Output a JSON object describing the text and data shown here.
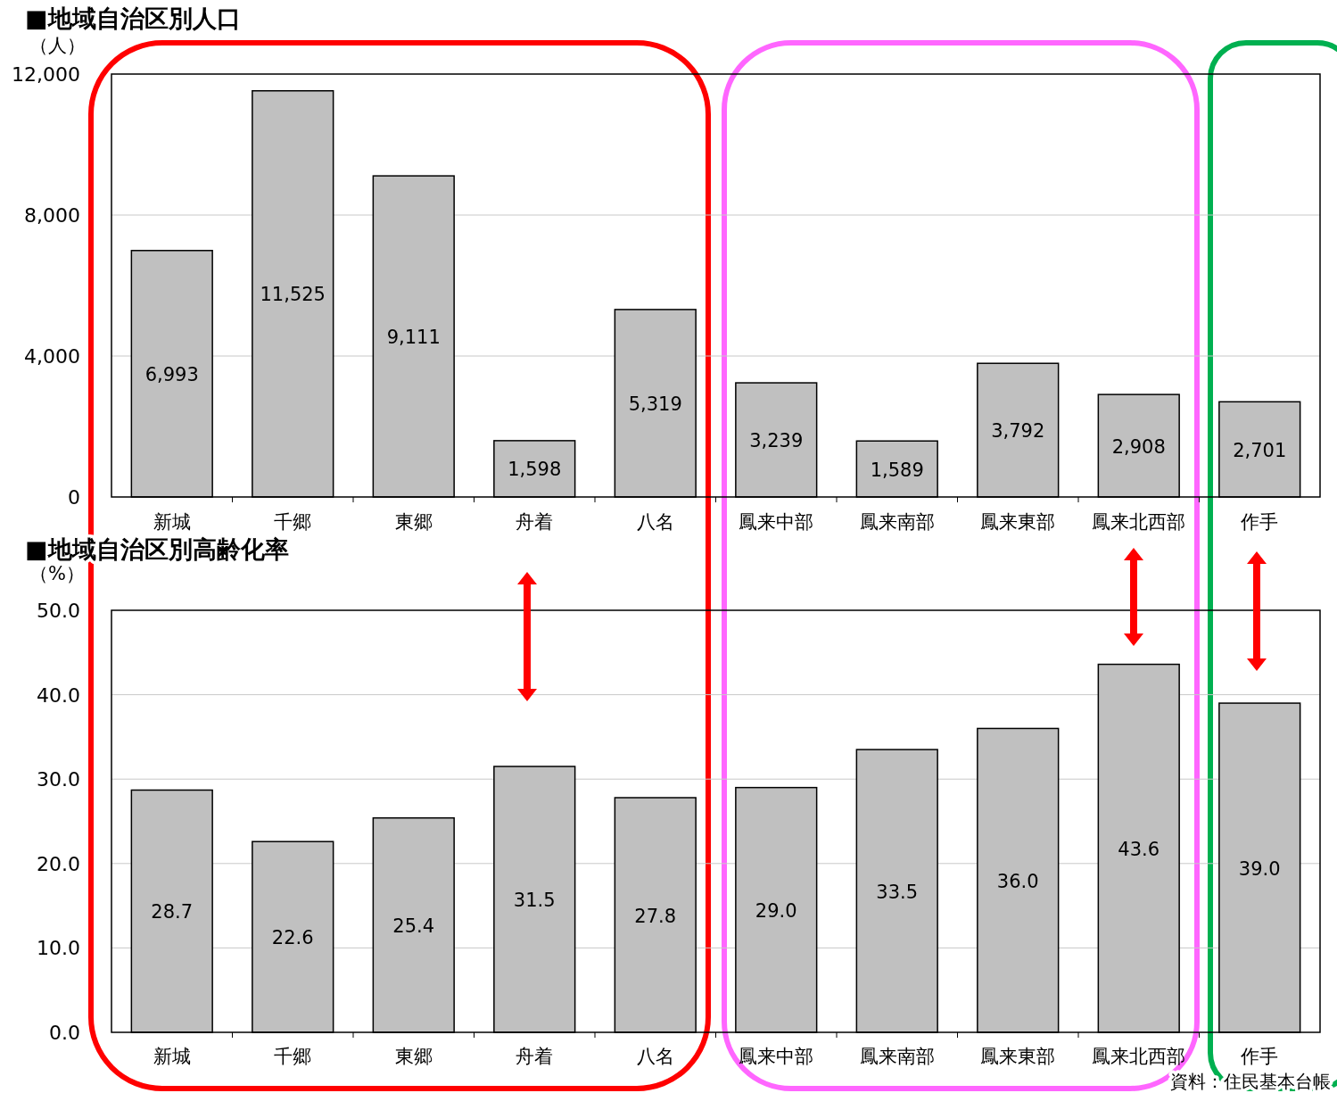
{
  "chart_data": [
    {
      "type": "bar",
      "title": "■地域自治区別人口",
      "ylabel": "（人）",
      "categories": [
        "新城",
        "千郷",
        "東郷",
        "舟着",
        "八名",
        "鳳来中部",
        "鳳来南部",
        "鳳来東部",
        "鳳来北西部",
        "作手"
      ],
      "values": [
        6993,
        11525,
        9111,
        1598,
        5319,
        3239,
        1589,
        3792,
        2908,
        2701
      ],
      "color": "#c0c0c0",
      "value_labels": [
        "6,993",
        "11,525",
        "9,111",
        "1,598",
        "5,319",
        "3,239",
        "1,589",
        "3,792",
        "2,908",
        "2,701"
      ],
      "ylim": [
        0,
        12000
      ],
      "yticks": [
        0,
        {
          "value": 4000,
          "label": "4,000"
        },
        {
          "value": 8000,
          "label": "8,000"
        },
        {
          "value": 12000,
          "label": "12,000"
        }
      ],
      "grid": "y"
    },
    {
      "type": "bar",
      "title": "■地域自治区別高齢化率",
      "ylabel": "（%）",
      "categories": [
        "新城",
        "千郷",
        "東郷",
        "舟着",
        "八名",
        "鳳来中部",
        "鳳来南部",
        "鳳来東部",
        "鳳来北西部",
        "作手"
      ],
      "values": [
        28.7,
        22.6,
        25.4,
        31.5,
        27.8,
        29.0,
        33.5,
        36.0,
        43.6,
        39.0
      ],
      "color": "#c0c0c0",
      "value_labels": [
        "28.7",
        "22.6",
        "25.4",
        "31.5",
        "27.8",
        "29.0",
        "33.5",
        "36.0",
        "43.6",
        "39.0"
      ],
      "ylim": [
        0,
        50
      ],
      "yticks": [
        {
          "value": 0,
          "label": "0.0"
        },
        {
          "value": 10,
          "label": "10.0"
        },
        {
          "value": 20,
          "label": "20.0"
        },
        {
          "value": 30,
          "label": "30.0"
        },
        {
          "value": 40,
          "label": "40.0"
        },
        {
          "value": 50,
          "label": "50.0"
        }
      ],
      "grid": "y",
      "annotations": [
        "資料：住民基本台帳"
      ]
    }
  ]
}
